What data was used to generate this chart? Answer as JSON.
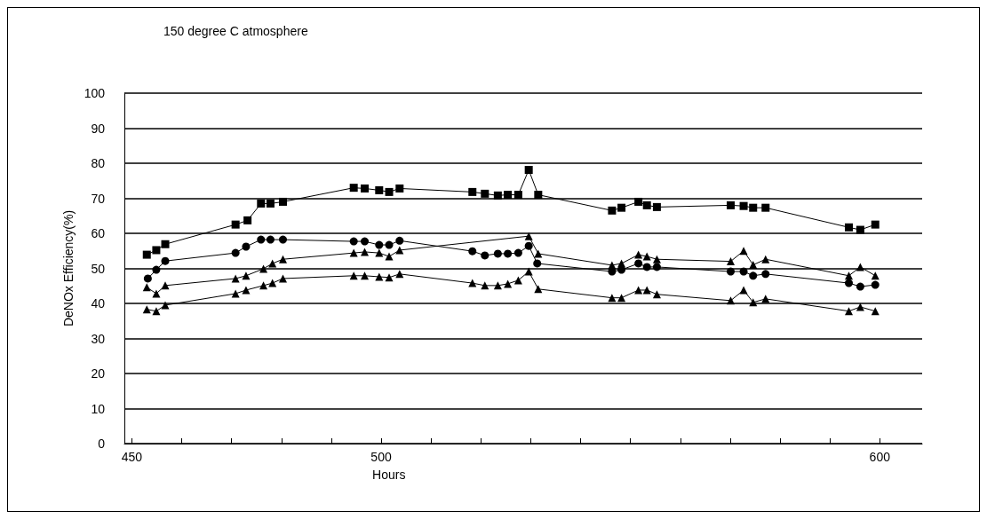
{
  "chart_data": {
    "type": "line",
    "title": "150 degree C atmosphere",
    "xlabel": "Hours",
    "ylabel": "DeNOx Efficiency(%)",
    "xlim": [
      448.5,
      608.5
    ],
    "xticks": [
      450,
      {
        "value": 460,
        "label": null
      },
      {
        "value": 470,
        "label": null
      },
      {
        "value": 480,
        "label": null
      },
      {
        "value": 490,
        "label": null
      },
      500,
      {
        "value": 510,
        "label": null
      },
      {
        "value": 520,
        "label": null
      },
      {
        "value": 530,
        "label": null
      },
      {
        "value": 540,
        "label": null
      },
      {
        "value": 550,
        "label": null
      },
      {
        "value": 560,
        "label": null
      },
      {
        "value": 570,
        "label": null
      },
      {
        "value": 580,
        "label": null
      },
      {
        "value": 590,
        "label": null
      },
      600
    ],
    "ylim": [
      0,
      100
    ],
    "yticks": [
      0,
      10,
      20,
      30,
      40,
      50,
      60,
      70,
      80,
      90,
      100
    ],
    "grid": "y",
    "series": [
      {
        "color": "#000000",
        "marker": "square",
        "x": [
          453.0,
          454.9,
          456.7,
          470.8,
          473.2,
          475.9,
          477.8,
          480.3,
          494.5,
          496.7,
          499.6,
          501.6,
          503.7,
          518.3,
          520.8,
          523.4,
          525.4,
          527.5,
          529.6,
          531.5,
          546.3,
          548.2,
          551.6,
          553.3,
          555.3,
          570.1,
          572.7,
          574.6,
          577.1,
          593.8,
          596.1,
          599.1
        ],
        "values": [
          53.9,
          55.2,
          56.9,
          62.5,
          63.7,
          68.5,
          68.5,
          69,
          73,
          72.8,
          72.3,
          71.8,
          72.8,
          71.8,
          71.3,
          70.8,
          71,
          71,
          78.1,
          71,
          66.5,
          67.3,
          69,
          68,
          67.5,
          68,
          67.8,
          67.3,
          67.3,
          61.7,
          61,
          62.5
        ]
      },
      {
        "color": "#000000",
        "marker": "circle",
        "x": [
          453.2,
          454.9,
          456.7,
          470.8,
          472.9,
          475.9,
          477.8,
          480.3,
          494.5,
          496.7,
          499.6,
          501.6,
          503.7,
          518.3,
          520.8,
          523.4,
          525.4,
          527.5,
          529.6,
          531.3,
          546.3,
          548.2,
          551.6,
          553.3,
          555.3,
          570.1,
          572.7,
          574.6,
          577.1,
          593.8,
          596.1,
          599.1
        ],
        "values": [
          47.1,
          49.6,
          52.1,
          54.4,
          56.2,
          58.2,
          58.2,
          58.2,
          57.7,
          57.7,
          56.7,
          56.7,
          57.9,
          54.9,
          53.7,
          54.2,
          54.2,
          54.4,
          56.4,
          51.4,
          49.1,
          49.6,
          51.4,
          50.4,
          50.4,
          49.1,
          49.1,
          47.9,
          48.4,
          45.8,
          44.8,
          45.3
        ]
      },
      {
        "color": "#000000",
        "marker": "triangle",
        "x": [
          453.0,
          454.9,
          456.7,
          470.8,
          472.9,
          476.4,
          478.2,
          480.3,
          494.5,
          496.7,
          499.6,
          501.6,
          503.7,
          518.3,
          520.8,
          523.4,
          525.4,
          527.5,
          529.6,
          531.5,
          546.3,
          548.2,
          551.6,
          553.3,
          555.3,
          570.1,
          572.7,
          574.6,
          577.1,
          593.8,
          596.1,
          599.1
        ],
        "values": [
          44.6,
          42.8,
          45.1,
          47.1,
          47.9,
          49.9,
          51.4,
          52.6,
          54.4,
          54.7,
          54.4,
          53.4,
          55.2,
          null,
          null,
          null,
          null,
          null,
          59.2,
          54.2,
          50.9,
          51.4,
          53.9,
          53.4,
          52.6,
          52,
          55,
          51,
          52.6,
          47.9,
          50.4,
          47.9
        ]
      },
      {
        "color": "#000000",
        "marker": "triangle",
        "x": [
          453.0,
          454.9,
          456.7,
          470.8,
          472.9,
          476.4,
          478.2,
          480.3,
          494.5,
          496.7,
          499.6,
          501.6,
          503.7,
          518.3,
          520.8,
          523.4,
          525.4,
          527.5,
          529.6,
          531.5,
          546.3,
          548.2,
          551.6,
          553.3,
          555.3,
          570.1,
          572.7,
          574.6,
          577.1,
          593.8,
          596.1,
          599.1
        ],
        "values": [
          38.3,
          37.8,
          39.5,
          42.8,
          43.8,
          45.1,
          45.8,
          47.1,
          47.9,
          47.9,
          47.6,
          47.4,
          48.4,
          45.8,
          45.1,
          45.1,
          45.6,
          46.6,
          49.1,
          44.1,
          41.6,
          41.6,
          43.8,
          43.8,
          42.6,
          40.8,
          43.8,
          40.3,
          41.3,
          37.8,
          39,
          37.8
        ]
      }
    ]
  }
}
